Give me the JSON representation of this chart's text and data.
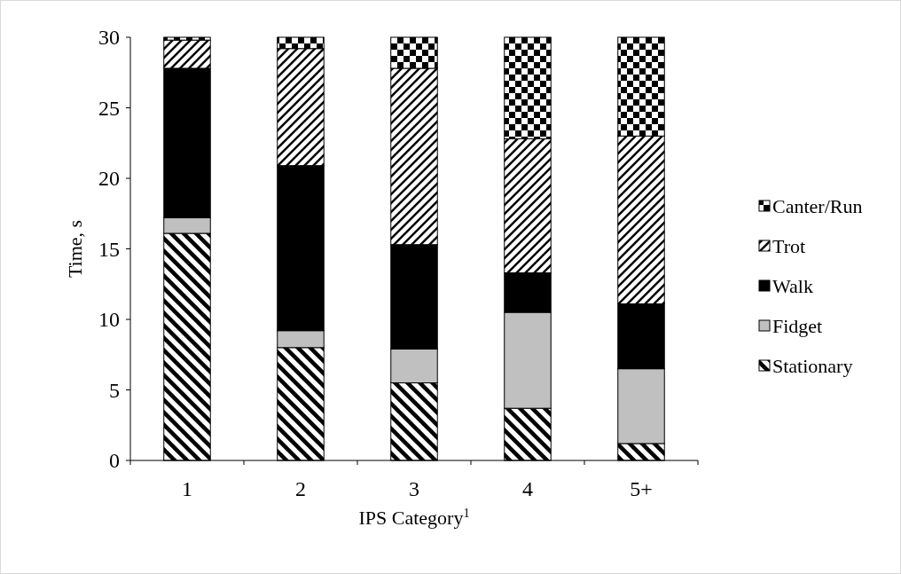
{
  "chart_data": {
    "type": "bar",
    "stacked": true,
    "xlabel": "IPS Category$^{1}$",
    "ylabel": "Time, s",
    "categories": [
      "1",
      "2",
      "3",
      "4",
      "5+"
    ],
    "ylim": [
      0,
      30
    ],
    "yticks": [
      0,
      5,
      10,
      15,
      20,
      25,
      30
    ],
    "legend": "right",
    "grid": false,
    "series": [
      {
        "name": "Stationary",
        "color": "#000000",
        "values": [
          16.1,
          8.0,
          5.5,
          3.7,
          1.2
        ]
      },
      {
        "name": "Fidget",
        "color": "#c0c0c0",
        "values": [
          1.1,
          1.2,
          2.4,
          6.8,
          5.3
        ]
      },
      {
        "name": "Walk",
        "color": "#000000",
        "values": [
          10.6,
          11.7,
          7.4,
          2.8,
          4.6
        ]
      },
      {
        "name": "Trot",
        "color": "#000000",
        "values": [
          2.0,
          8.3,
          12.5,
          9.5,
          11.9
        ]
      },
      {
        "name": "Canter/Run",
        "color": "#000000",
        "values": [
          0.2,
          0.8,
          2.2,
          7.2,
          7.0
        ]
      }
    ]
  }
}
